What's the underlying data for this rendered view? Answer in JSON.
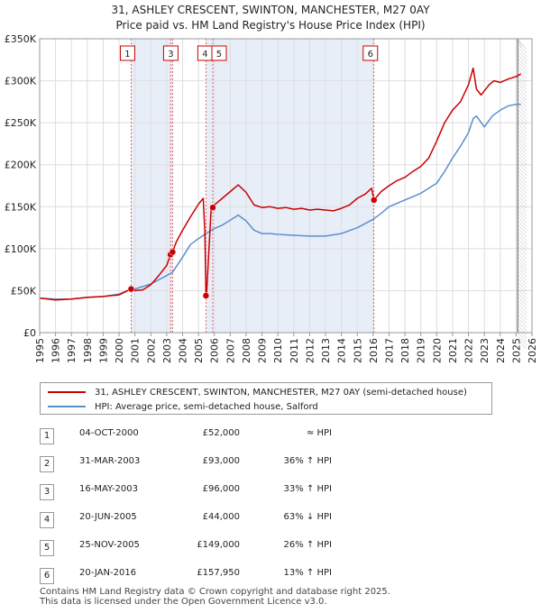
{
  "title": {
    "line1": "31, ASHLEY CRESCENT, SWINTON, MANCHESTER, M27 0AY",
    "line2": "Price paid vs. HM Land Registry's House Price Index (HPI)"
  },
  "legend": {
    "property": "31, ASHLEY CRESCENT, SWINTON, MANCHESTER, M27 0AY (semi-detached house)",
    "hpi": "HPI: Average price, semi-detached house, Salford"
  },
  "colors": {
    "property": "#cc0000",
    "hpi": "#5b8fd0",
    "shade": "#e8eef8",
    "grid": "#dddddd"
  },
  "chart_data": {
    "type": "line",
    "title": "Price paid vs. HM Land Registry's House Price Index (HPI)",
    "xlim": [
      1995,
      2026
    ],
    "ylim": [
      0,
      350000
    ],
    "x_ticks": [
      "1995",
      "1996",
      "1997",
      "1998",
      "1999",
      "2000",
      "2001",
      "2002",
      "2003",
      "2004",
      "2005",
      "2006",
      "2007",
      "2008",
      "2009",
      "2010",
      "2011",
      "2012",
      "2013",
      "2014",
      "2015",
      "2016",
      "2017",
      "2018",
      "2019",
      "2020",
      "2021",
      "2022",
      "2023",
      "2024",
      "2025",
      "2026"
    ],
    "y_ticks": [
      {
        "value": 0,
        "label": "£0"
      },
      {
        "value": 50000,
        "label": "£50K"
      },
      {
        "value": 100000,
        "label": "£100K"
      },
      {
        "value": 150000,
        "label": "£150K"
      },
      {
        "value": 200000,
        "label": "£200K"
      },
      {
        "value": 250000,
        "label": "£250K"
      },
      {
        "value": 300000,
        "label": "£300K"
      },
      {
        "value": 350000,
        "label": "£350K"
      }
    ],
    "shaded_periods": [
      [
        2000.76,
        2003.37
      ],
      [
        2005.47,
        2016.05
      ]
    ],
    "forecast_start": 2025.1,
    "series": [
      {
        "name": "31, ASHLEY CRESCENT, SWINTON, MANCHESTER, M27 0AY (semi-detached house)",
        "color": "#cc0000",
        "x": [
          1995,
          1995.5,
          1996,
          1997,
          1998,
          1999,
          2000,
          2000.76,
          2001,
          2001.5,
          2002,
          2002.5,
          2003,
          2003.24,
          2003.37,
          2003.6,
          2004,
          2004.5,
          2005,
          2005.3,
          2005.4,
          2005.47,
          2005.5,
          2005.8,
          2005.9,
          2006,
          2006.5,
          2007,
          2007.5,
          2008,
          2008.5,
          2009,
          2009.5,
          2010,
          2010.5,
          2011,
          2011.5,
          2012,
          2012.5,
          2013,
          2013.5,
          2014,
          2014.5,
          2015,
          2015.5,
          2015.9,
          2016.05,
          2016.5,
          2017,
          2017.5,
          2018,
          2018.5,
          2019,
          2019.5,
          2020,
          2020.5,
          2021,
          2021.5,
          2022,
          2022.3,
          2022.5,
          2022.8,
          2023,
          2023.3,
          2023.6,
          2024,
          2024.5,
          2025,
          2025.3
        ],
        "y": [
          41000,
          40000,
          39000,
          40000,
          42000,
          43000,
          45000,
          52000,
          50000,
          51000,
          57000,
          68000,
          80000,
          93000,
          96000,
          108000,
          122000,
          138000,
          153000,
          160000,
          120000,
          44000,
          42000,
          148000,
          149000,
          152000,
          160000,
          168000,
          176000,
          167000,
          152000,
          149000,
          150000,
          148000,
          149000,
          147000,
          148000,
          146000,
          147000,
          146000,
          145000,
          148000,
          152000,
          160000,
          165000,
          172000,
          157950,
          168000,
          175000,
          181000,
          185000,
          192000,
          198000,
          208000,
          228000,
          250000,
          265000,
          275000,
          295000,
          315000,
          290000,
          283000,
          288000,
          295000,
          300000,
          298000,
          302000,
          305000,
          308000
        ]
      },
      {
        "name": "HPI: Average price, semi-detached house, Salford",
        "color": "#5b8fd0",
        "x": [
          1995,
          1996,
          1997,
          1998,
          1999,
          2000,
          2000.76,
          2001,
          2002,
          2003,
          2003.37,
          2004,
          2004.5,
          2005,
          2005.47,
          2006,
          2006.5,
          2007,
          2007.5,
          2008,
          2008.5,
          2009,
          2009.5,
          2010,
          2011,
          2012,
          2013,
          2014,
          2015,
          2016,
          2016.5,
          2017,
          2018,
          2019,
          2020,
          2020.5,
          2021,
          2021.5,
          2022,
          2022.3,
          2022.5,
          2023,
          2023.5,
          2024,
          2024.5,
          2025,
          2025.3
        ],
        "y": [
          41000,
          40000,
          40000,
          42000,
          43000,
          46000,
          52000,
          52000,
          58000,
          68000,
          72000,
          90000,
          105000,
          112000,
          118000,
          124000,
          128000,
          134000,
          140000,
          133000,
          122000,
          118000,
          118000,
          117000,
          116000,
          115000,
          115000,
          118000,
          125000,
          135000,
          142000,
          150000,
          158000,
          166000,
          178000,
          192000,
          208000,
          222000,
          238000,
          255000,
          258000,
          245000,
          258000,
          265000,
          270000,
          272000,
          272000
        ]
      }
    ],
    "sales": [
      {
        "num": "1",
        "date": "04-OCT-2000",
        "price": "£52,000",
        "hpi": "≈ HPI",
        "x": 2000.76,
        "y": 52000
      },
      {
        "num": "2",
        "date": "31-MAR-2003",
        "price": "£93,000",
        "hpi": "36% ↑ HPI",
        "x": 2003.24,
        "y": 93000
      },
      {
        "num": "3",
        "date": "16-MAY-2003",
        "price": "£96,000",
        "hpi": "33% ↑ HPI",
        "x": 2003.37,
        "y": 96000
      },
      {
        "num": "4",
        "date": "20-JUN-2005",
        "price": "£44,000",
        "hpi": "63% ↓ HPI",
        "x": 2005.47,
        "y": 44000
      },
      {
        "num": "5",
        "date": "25-NOV-2005",
        "price": "£149,000",
        "hpi": "26% ↑ HPI",
        "x": 2005.9,
        "y": 149000
      },
      {
        "num": "6",
        "date": "20-JAN-2016",
        "price": "£157,950",
        "hpi": "13% ↑ HPI",
        "x": 2016.05,
        "y": 157950
      }
    ]
  },
  "footer": {
    "line1": "Contains HM Land Registry data © Crown copyright and database right 2025.",
    "line2": "This data is licensed under the Open Government Licence v3.0."
  }
}
